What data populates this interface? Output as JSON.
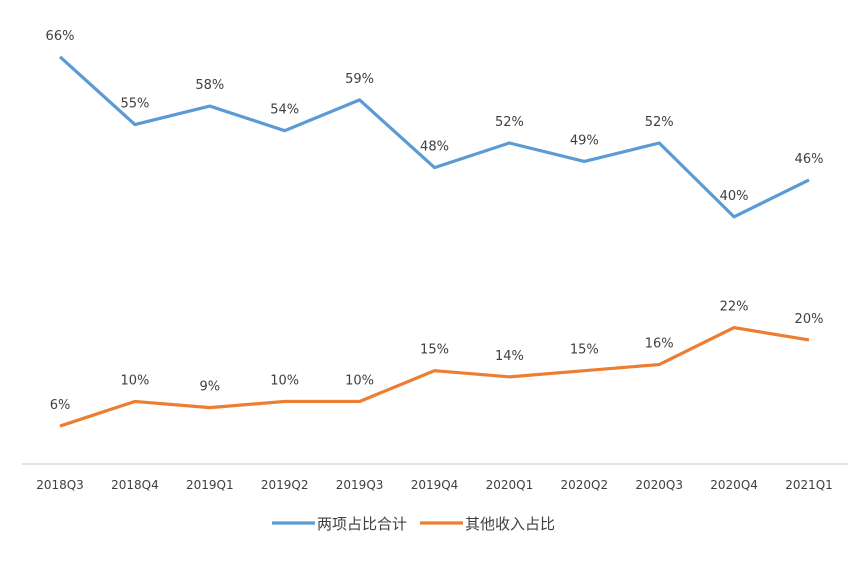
{
  "chart_data": {
    "type": "line",
    "title": "",
    "xlabel": "",
    "ylabel": "",
    "ylim": [
      0,
      66
    ],
    "grid": false,
    "legend_position": "bottom",
    "categories": [
      "2018Q3",
      "2018Q4",
      "2019Q1",
      "2019Q2",
      "2019Q3",
      "2019Q4",
      "2020Q1",
      "2020Q2",
      "2020Q3",
      "2020Q4",
      "2021Q1"
    ],
    "series": [
      {
        "name": "两项占比合计",
        "color": "#5B9BD5",
        "values": [
          66,
          55,
          58,
          54,
          59,
          48,
          52,
          49,
          52,
          40,
          46
        ]
      },
      {
        "name": "其他收入占比",
        "color": "#ED7D31",
        "values": [
          6,
          10,
          9,
          10,
          10,
          15,
          14,
          15,
          16,
          22,
          20
        ]
      }
    ],
    "value_suffix": "%"
  }
}
